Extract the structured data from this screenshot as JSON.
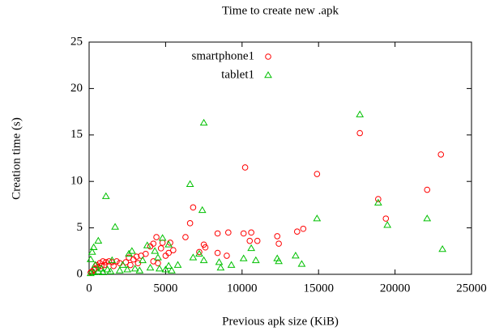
{
  "chart_data": {
    "type": "scatter",
    "title": "Time to create new .apk",
    "x_label": "Previous apk size (KiB)",
    "y_label": "Creation time (s)",
    "xlim": [
      0,
      25000
    ],
    "xticks": [
      0,
      5000,
      10000,
      15000,
      20000,
      25000
    ],
    "ylim": [
      0,
      25
    ],
    "yticks": [
      0,
      5,
      10,
      15,
      20,
      25
    ],
    "legend": "upper-right",
    "series": [
      {
        "name": "smartphone1",
        "color": "#ff0000",
        "marker": "circle",
        "x": [
          10200,
          17700,
          23000,
          22100,
          18900,
          19400,
          14900,
          6800,
          6600,
          7500,
          7600,
          8400,
          9100,
          10100,
          10600,
          10500,
          11000,
          12300,
          12400,
          13600,
          14000,
          9000,
          8400,
          7200,
          6300,
          5300,
          5500,
          5200,
          4800,
          4700,
          4400,
          4200,
          4000,
          3700,
          3400,
          3100,
          2900,
          2600,
          2400,
          2000,
          1800,
          1500,
          1300,
          1100,
          900,
          700,
          500,
          400,
          300,
          200,
          100,
          4200,
          4500,
          5000,
          3200,
          2700,
          600,
          800,
          1000,
          1600
        ],
        "values": [
          11.5,
          15.2,
          12.9,
          9.1,
          8.1,
          6.0,
          10.8,
          7.2,
          5.5,
          3.2,
          2.9,
          4.4,
          4.5,
          4.4,
          4.5,
          3.6,
          3.6,
          4.1,
          3.3,
          4.6,
          4.9,
          2.0,
          2.3,
          2.4,
          4.0,
          3.4,
          2.6,
          2.3,
          3.4,
          2.8,
          4.0,
          3.3,
          3.0,
          2.2,
          2.0,
          1.9,
          1.6,
          1.8,
          1.3,
          1.2,
          1.4,
          1.3,
          1.4,
          1.3,
          1.4,
          1.2,
          1.0,
          0.6,
          0.5,
          0.3,
          0.2,
          1.4,
          1.2,
          2.0,
          1.2,
          1.0,
          0.8,
          0.9,
          1.0,
          0.9
        ]
      },
      {
        "name": "tablet1",
        "color": "#00c000",
        "marker": "triangle",
        "x": [
          7500,
          17700,
          1100,
          6600,
          7400,
          18900,
          19500,
          22100,
          14900,
          23100,
          1700,
          10600,
          10900,
          10100,
          12400,
          13500,
          13900,
          12300,
          9300,
          8500,
          8600,
          7500,
          7200,
          6800,
          5800,
          5200,
          5200,
          4800,
          4300,
          4500,
          3800,
          3500,
          2800,
          2600,
          2200,
          1500,
          600,
          300,
          200,
          100,
          400,
          800,
          1200,
          2000,
          3000,
          4000,
          5000,
          100,
          300,
          600,
          900,
          1400,
          2500,
          3300,
          4600,
          5400
        ],
        "values": [
          16.3,
          17.2,
          8.4,
          9.7,
          6.9,
          7.7,
          5.3,
          6.0,
          6.0,
          2.7,
          5.1,
          2.8,
          1.5,
          1.7,
          1.4,
          2.0,
          1.1,
          1.7,
          1.0,
          1.3,
          0.7,
          1.5,
          2.2,
          1.8,
          1.0,
          3.2,
          0.9,
          3.9,
          2.5,
          1.8,
          3.1,
          1.5,
          2.5,
          2.2,
          1.0,
          1.5,
          3.6,
          2.9,
          2.4,
          1.6,
          1.0,
          0.6,
          0.5,
          0.4,
          0.6,
          0.7,
          0.5,
          0.1,
          0.2,
          0.3,
          0.2,
          0.3,
          0.5,
          0.4,
          0.6,
          0.4
        ]
      }
    ]
  }
}
